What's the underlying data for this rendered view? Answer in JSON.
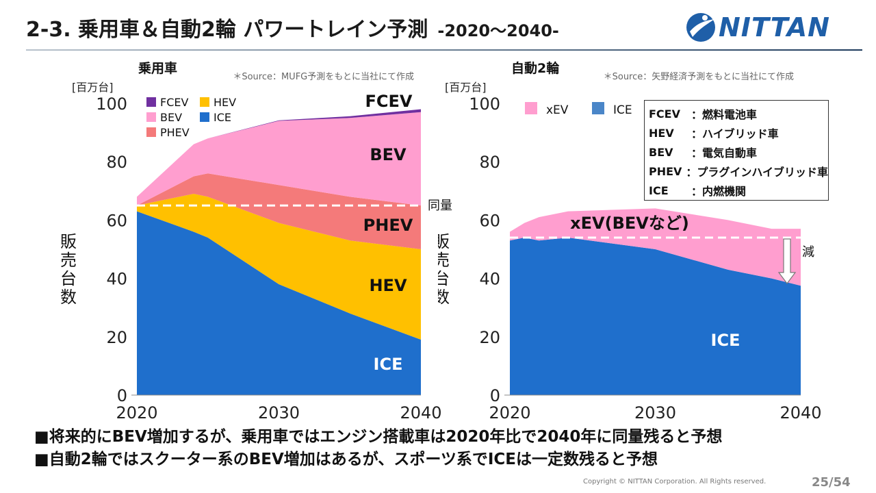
{
  "header": {
    "title": "2-3. 乗用車＆自動2輪 パワートレイン予測",
    "subtitle": "-2020～2040-",
    "logo_text": "NITTAN"
  },
  "colors": {
    "ice": "#1f6fcc",
    "hev": "#ffc000",
    "phev": "#f47a7a",
    "bev": "#ff9ecf",
    "fcev": "#7030a0",
    "xev": "#ff9ecf",
    "moto_ice": "#1f6fcc"
  },
  "chart_data": [
    {
      "type": "area",
      "title": "乗用車",
      "source": "＊Source：MUFG予測をもとに当社にて作成",
      "unit_label": "[百万台]",
      "ylabel": "販売台数",
      "ylim": [
        0,
        100
      ],
      "yticks": [
        "0",
        "20",
        "40",
        "60",
        "80",
        "100"
      ],
      "xticks": [
        "2020",
        "2030",
        "2040"
      ],
      "x": [
        2020,
        2024,
        2025,
        2030,
        2035,
        2040
      ],
      "series": [
        {
          "name": "ICE",
          "values": [
            63,
            56,
            54,
            38,
            28,
            19
          ]
        },
        {
          "name": "HEV",
          "values": [
            2,
            13,
            14,
            21,
            25,
            31
          ]
        },
        {
          "name": "PHEV",
          "values": [
            0,
            6,
            8,
            13,
            15,
            15
          ]
        },
        {
          "name": "BEV",
          "values": [
            3,
            11,
            12,
            22,
            27,
            32
          ]
        },
        {
          "name": "FCEV",
          "values": [
            0,
            0,
            0,
            0.2,
            0.6,
            1
          ]
        }
      ],
      "legend": [
        "FCEV",
        "HEV",
        "BEV",
        "ICE",
        "PHEV"
      ],
      "annotations": {
        "fcev": "FCEV",
        "bev": "BEV",
        "phev": "PHEV",
        "hev": "HEV",
        "ice": "ICE",
        "reference_line": 65,
        "reference_label": "同量"
      }
    },
    {
      "type": "area",
      "title": "自動2輪",
      "source": "＊Source：矢野経済予測をもとに当社にて作成",
      "unit_label": "[百万台]",
      "ylabel": "販売台数",
      "ylim": [
        0,
        100
      ],
      "yticks": [
        "0",
        "20",
        "40",
        "60",
        "80",
        "100"
      ],
      "xticks": [
        "2020",
        "2030",
        "2040"
      ],
      "x": [
        2020,
        2021,
        2022,
        2024,
        2030,
        2035,
        2038,
        2040
      ],
      "series": [
        {
          "name": "ICE",
          "values": [
            53,
            54,
            53,
            54,
            50,
            43,
            40,
            37.5
          ]
        },
        {
          "name": "xEV",
          "values": [
            3,
            5,
            8,
            9,
            14,
            17,
            17,
            19.5
          ]
        }
      ],
      "legend": [
        "xEV",
        "ICE"
      ],
      "annotations": {
        "xev": "xEV(BEVなど)",
        "ice": "ICE",
        "reference_line": 54,
        "reference_label": "減"
      }
    }
  ],
  "glossary": [
    {
      "key": "FCEV",
      "value": "：燃料電池車"
    },
    {
      "key": "HEV",
      "value": "：ハイブリッド車"
    },
    {
      "key": "BEV",
      "value": "：電気自動車"
    },
    {
      "key": "PHEV",
      "value": "：プラグインハイブリッド車"
    },
    {
      "key": "ICE",
      "value": "：内燃機関"
    }
  ],
  "bullets": [
    "■将来的にBEV増加するが、乗用車ではエンジン搭載車は2020年比で2040年に同量残ると予想",
    "■自動2輪ではスクーター系のBEV増加はあるが、スポーツ系でICEは一定数残ると予想"
  ],
  "footer": {
    "copyright": "Copyright © NITTAN Corporation. All Rights reserved.",
    "page": "25/54"
  }
}
